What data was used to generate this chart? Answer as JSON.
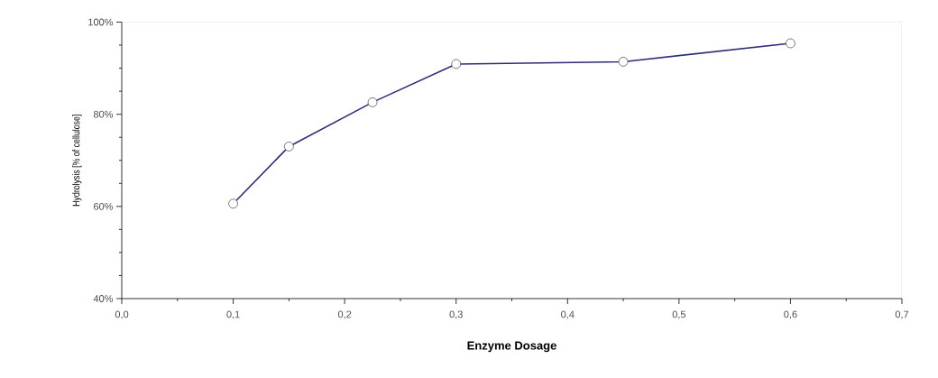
{
  "chart_data": {
    "type": "line",
    "xlabel": "Enzyme Dosage",
    "ylabel": "Hydrolysis [% of cellulose]",
    "x": [
      0.1,
      0.15,
      0.225,
      0.3,
      0.45,
      0.6
    ],
    "series": [
      {
        "color": "#2e2e78",
        "values": [
          60.6,
          73.0,
          82.6,
          90.9,
          91.4,
          95.4
        ]
      }
    ],
    "xlim": [
      0,
      0.7
    ],
    "ylim": [
      40,
      100
    ],
    "xticks": [
      {
        "value": 0,
        "label": "0,0"
      },
      {
        "value": 0.1,
        "label": "0,1"
      },
      {
        "value": 0.2,
        "label": "0,2"
      },
      {
        "value": 0.3,
        "label": "0,3"
      },
      {
        "value": 0.4,
        "label": "0,4"
      },
      {
        "value": 0.5,
        "label": "0,5"
      },
      {
        "value": 0.6,
        "label": "0,6"
      },
      {
        "value": 0.7,
        "label": "0,7"
      }
    ],
    "yticks": [
      {
        "value": 40,
        "label": "40%"
      },
      {
        "value": 60,
        "label": "60%"
      },
      {
        "value": 80,
        "label": "80%"
      },
      {
        "value": 100,
        "label": "100%"
      }
    ],
    "grid": false,
    "marker": "circle",
    "line_style": "solid"
  }
}
